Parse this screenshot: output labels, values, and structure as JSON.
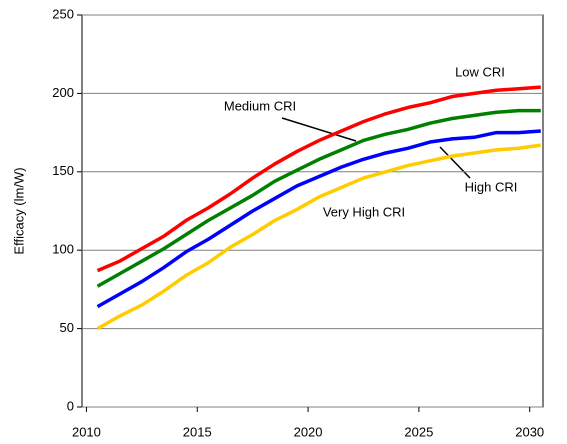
{
  "chart_data": {
    "type": "line",
    "y_label": "Efficacy (lm/W)",
    "x": [
      2010.5,
      2011.5,
      2012.5,
      2013.5,
      2014.5,
      2015.5,
      2016.5,
      2017.5,
      2018.5,
      2019.5,
      2020.5,
      2021.5,
      2022.5,
      2023.5,
      2024.5,
      2025.5,
      2026.5,
      2027.5,
      2028.5,
      2029.5,
      2030.5
    ],
    "series": [
      {
        "name": "Low CRI",
        "color": "#ff0000",
        "values": [
          87,
          93,
          101,
          109,
          119,
          127,
          136,
          146,
          155,
          163,
          170,
          176,
          182,
          187,
          191,
          194,
          198,
          200,
          202,
          203,
          204
        ]
      },
      {
        "name": "Medium CRI",
        "color": "#008000",
        "values": [
          77,
          85,
          93,
          101,
          110,
          119,
          127,
          135,
          144,
          151,
          158,
          164,
          170,
          174,
          177,
          181,
          184,
          186,
          188,
          189,
          189
        ]
      },
      {
        "name": "High CRI",
        "color": "#0000ff",
        "values": [
          64,
          72,
          80,
          89,
          99,
          107,
          116,
          125,
          133,
          141,
          147,
          153,
          158,
          162,
          165,
          169,
          171,
          172,
          175,
          175,
          176
        ]
      },
      {
        "name": "Very High CRI",
        "color": "#ffcc00",
        "values": [
          50,
          58,
          65,
          74,
          84,
          92,
          102,
          110,
          119,
          126,
          134,
          140,
          146,
          150,
          154,
          157,
          160,
          162,
          164,
          165,
          167
        ]
      }
    ],
    "xlim": [
      2009.8,
      2030.6
    ],
    "xticks": [
      2010,
      2015,
      2020,
      2025,
      2030
    ],
    "ylim": [
      0,
      250
    ],
    "yticks": [
      0,
      50,
      100,
      150,
      200,
      250
    ],
    "grid": true
  }
}
